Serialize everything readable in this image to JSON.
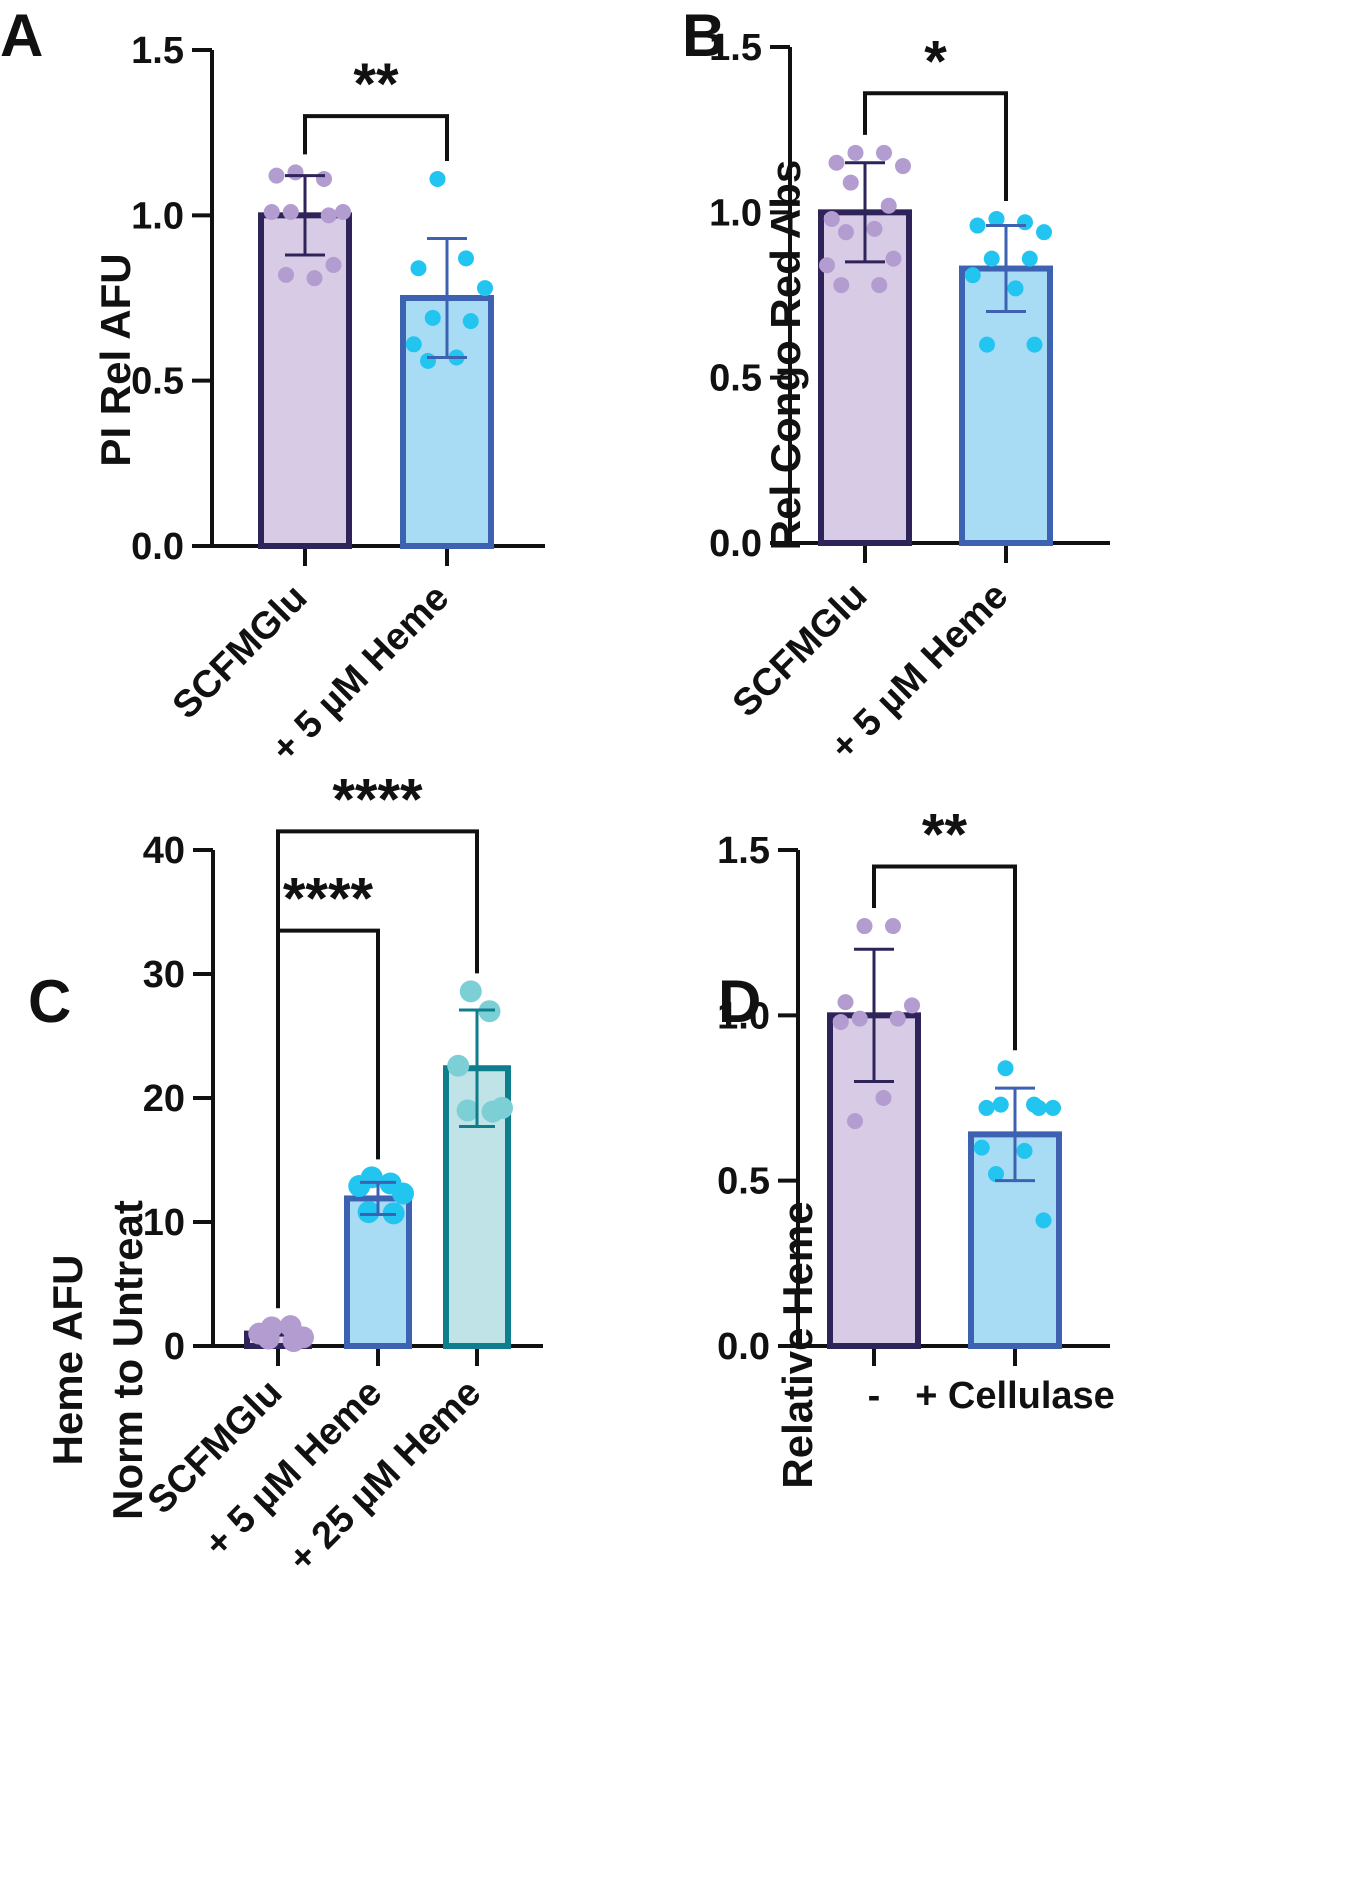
{
  "colors": {
    "axis": "#111111",
    "purple_fill": "#d8cbe5",
    "purple_edge": "#2e2459",
    "purple_dot": "#b39cd0",
    "blue_fill": "#a8dcf5",
    "blue_edge": "#3e62b2",
    "blue_dot": "#22c4f0",
    "teal_fill": "#bfe3e6",
    "teal_edge": "#0f7e8c",
    "teal_dot": "#7ccfd5"
  },
  "chart_data": [
    {
      "panel": "A",
      "type": "bar",
      "ylabel": "PI Rel AFU",
      "ylim": [
        0,
        1.5
      ],
      "yticks": [
        "0.0",
        "0.5",
        "1.0",
        "1.5"
      ],
      "tick_values": [
        0,
        0.5,
        1.0,
        1.5
      ],
      "categories": [
        "SCFMGlu",
        "+ 5 µM Heme"
      ],
      "category_style": "rotated",
      "values": [
        1.0,
        0.75
      ],
      "sd": [
        0.12,
        0.18
      ],
      "palette": [
        "purple",
        "blue"
      ],
      "points": [
        [
          1.13,
          1.11,
          1.12,
          1.01,
          1.01,
          1.0,
          1.01,
          0.81,
          0.82,
          0.85
        ],
        [
          1.11,
          0.87,
          0.84,
          0.78,
          0.69,
          0.68,
          0.61,
          0.57,
          0.56
        ]
      ],
      "significance": [
        {
          "from": 0,
          "to": 1,
          "label": "**",
          "y": 1.3
        }
      ]
    },
    {
      "panel": "B",
      "type": "bar",
      "ylabel": "Rel Congo Red Abs",
      "ylim": [
        0,
        1.5
      ],
      "yticks": [
        "0.0",
        "0.5",
        "1.0",
        "1.5"
      ],
      "tick_values": [
        0,
        0.5,
        1.0,
        1.5
      ],
      "categories": [
        "SCFMGlu",
        "+ 5 µM Heme"
      ],
      "category_style": "rotated",
      "values": [
        1.0,
        0.83
      ],
      "sd": [
        0.15,
        0.13
      ],
      "palette": [
        "purple",
        "blue"
      ],
      "points": [
        [
          1.18,
          1.18,
          1.15,
          1.14,
          1.09,
          1.02,
          0.98,
          0.95,
          0.94,
          0.86,
          0.84,
          0.78,
          0.78
        ],
        [
          0.98,
          0.97,
          0.96,
          0.94,
          0.86,
          0.86,
          0.81,
          0.77,
          0.6,
          0.6
        ]
      ],
      "significance": [
        {
          "from": 0,
          "to": 1,
          "label": "*",
          "y": 1.36
        }
      ]
    },
    {
      "panel": "C",
      "type": "bar",
      "ylabel": [
        "Heme AFU",
        "Norm to Untreat"
      ],
      "ylim": [
        0,
        40
      ],
      "yticks": [
        "0",
        "10",
        "20",
        "30",
        "40"
      ],
      "tick_values": [
        0,
        10,
        20,
        30,
        40
      ],
      "categories": [
        "SCFMGlu",
        "+ 5 µM Heme",
        "+ 25 µM Heme"
      ],
      "category_style": "rotated",
      "values": [
        1.0,
        11.9,
        22.4
      ],
      "sd": [
        0.0,
        1.3,
        4.7
      ],
      "palette": [
        "purple",
        "blue",
        "teal"
      ],
      "points": [
        [
          1.5,
          1.6,
          1.0,
          0.7,
          0.6,
          0.4
        ],
        [
          13.6,
          13.1,
          12.9,
          12.3,
          10.8,
          10.7
        ],
        [
          28.6,
          27.0,
          22.6,
          19.2,
          19.0,
          18.9
        ]
      ],
      "significance": [
        {
          "from": 0,
          "to": 1,
          "label": "****",
          "y": 33.5
        },
        {
          "from": 0,
          "to": 2,
          "label": "****",
          "y": 41.5
        }
      ]
    },
    {
      "panel": "D",
      "type": "bar",
      "ylabel": "Relative Heme",
      "ylim": [
        0,
        1.5
      ],
      "yticks": [
        "0.0",
        "0.5",
        "1.0",
        "1.5"
      ],
      "tick_values": [
        0,
        0.5,
        1.0,
        1.5
      ],
      "categories": [
        "-",
        "+ Cellulase"
      ],
      "category_style": "horizontal",
      "values": [
        1.0,
        0.64
      ],
      "sd": [
        0.2,
        0.14
      ],
      "palette": [
        "purple",
        "blue"
      ],
      "points": [
        [
          1.27,
          1.27,
          1.04,
          1.03,
          0.99,
          0.99,
          0.98,
          0.75,
          0.68
        ],
        [
          0.84,
          0.73,
          0.72,
          0.72,
          0.73,
          0.72,
          0.6,
          0.59,
          0.52,
          0.38
        ]
      ],
      "significance": [
        {
          "from": 0,
          "to": 1,
          "label": "**",
          "y": 1.45
        }
      ]
    }
  ]
}
